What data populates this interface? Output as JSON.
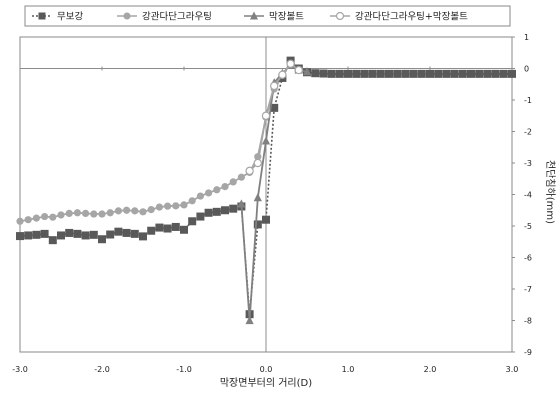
{
  "chart_data": {
    "type": "line",
    "xlabel": "막장면부터의 거리(D)",
    "ylabel": "천단침하(mm)",
    "xlim": [
      -3,
      3
    ],
    "ylim": [
      -9,
      1
    ],
    "x_ticks": [
      "-3.0",
      "-2.0",
      "-1.0",
      "0.0",
      "1.0",
      "2.0",
      "3.0"
    ],
    "y_ticks": [
      "1",
      "0",
      "-1",
      "-2",
      "-3",
      "-4",
      "-5",
      "-6",
      "-7",
      "-8",
      "-9"
    ],
    "grid": false,
    "legend_position": "top",
    "series": [
      {
        "name": "무보강",
        "color": "#595959",
        "marker": "square",
        "line": "dotted",
        "points": [
          [
            -3.0,
            -5.32
          ],
          [
            -2.9,
            -5.3
          ],
          [
            -2.8,
            -5.28
          ],
          [
            -2.7,
            -5.25
          ],
          [
            -2.6,
            -5.45
          ],
          [
            -2.5,
            -5.3
          ],
          [
            -2.4,
            -5.22
          ],
          [
            -2.3,
            -5.25
          ],
          [
            -2.2,
            -5.3
          ],
          [
            -2.1,
            -5.28
          ],
          [
            -2.0,
            -5.42
          ],
          [
            -1.9,
            -5.27
          ],
          [
            -1.8,
            -5.18
          ],
          [
            -1.7,
            -5.22
          ],
          [
            -1.6,
            -5.25
          ],
          [
            -1.5,
            -5.33
          ],
          [
            -1.4,
            -5.15
          ],
          [
            -1.3,
            -5.05
          ],
          [
            -1.2,
            -5.08
          ],
          [
            -1.1,
            -5.03
          ],
          [
            -1.0,
            -5.12
          ],
          [
            -0.9,
            -4.85
          ],
          [
            -0.8,
            -4.7
          ],
          [
            -0.7,
            -4.58
          ],
          [
            -0.6,
            -4.55
          ],
          [
            -0.5,
            -4.5
          ],
          [
            -0.4,
            -4.45
          ],
          [
            -0.3,
            -4.38
          ],
          [
            -0.2,
            -7.8
          ],
          [
            -0.1,
            -4.95
          ],
          [
            0.0,
            -4.8
          ],
          [
            0.1,
            -1.25
          ],
          [
            0.2,
            -0.3
          ],
          [
            0.3,
            0.25
          ],
          [
            0.4,
            0.0
          ],
          [
            0.5,
            -0.12
          ],
          [
            0.6,
            -0.15
          ],
          [
            0.7,
            -0.16
          ],
          [
            0.8,
            -0.17
          ],
          [
            0.9,
            -0.17
          ],
          [
            1.0,
            -0.17
          ],
          [
            1.1,
            -0.17
          ],
          [
            1.2,
            -0.17
          ],
          [
            1.3,
            -0.17
          ],
          [
            1.4,
            -0.17
          ],
          [
            1.5,
            -0.17
          ],
          [
            1.6,
            -0.17
          ],
          [
            1.7,
            -0.17
          ],
          [
            1.8,
            -0.17
          ],
          [
            1.9,
            -0.17
          ],
          [
            2.0,
            -0.17
          ],
          [
            2.1,
            -0.17
          ],
          [
            2.2,
            -0.17
          ],
          [
            2.3,
            -0.17
          ],
          [
            2.4,
            -0.17
          ],
          [
            2.5,
            -0.17
          ],
          [
            2.6,
            -0.17
          ],
          [
            2.7,
            -0.17
          ],
          [
            2.8,
            -0.17
          ],
          [
            2.9,
            -0.17
          ],
          [
            3.0,
            -0.17
          ]
        ]
      },
      {
        "name": "강관다단그라우팅",
        "color": "#a6a6a6",
        "marker": "circle",
        "line": "solid",
        "points": [
          [
            -3.0,
            -4.85
          ],
          [
            -2.9,
            -4.8
          ],
          [
            -2.8,
            -4.75
          ],
          [
            -2.7,
            -4.7
          ],
          [
            -2.6,
            -4.72
          ],
          [
            -2.5,
            -4.65
          ],
          [
            -2.4,
            -4.6
          ],
          [
            -2.3,
            -4.58
          ],
          [
            -2.2,
            -4.6
          ],
          [
            -2.1,
            -4.62
          ],
          [
            -2.0,
            -4.62
          ],
          [
            -1.9,
            -4.58
          ],
          [
            -1.8,
            -4.52
          ],
          [
            -1.7,
            -4.5
          ],
          [
            -1.6,
            -4.52
          ],
          [
            -1.5,
            -4.55
          ],
          [
            -1.4,
            -4.48
          ],
          [
            -1.3,
            -4.4
          ],
          [
            -1.2,
            -4.37
          ],
          [
            -1.1,
            -4.36
          ],
          [
            -1.0,
            -4.33
          ],
          [
            -0.9,
            -4.2
          ],
          [
            -0.8,
            -4.05
          ],
          [
            -0.7,
            -3.95
          ],
          [
            -0.6,
            -3.85
          ],
          [
            -0.5,
            -3.75
          ],
          [
            -0.4,
            -3.6
          ],
          [
            -0.3,
            -3.45
          ],
          [
            -0.2,
            -3.3
          ],
          [
            -0.1,
            -2.8
          ],
          [
            0.0,
            -1.55
          ],
          [
            0.1,
            -0.65
          ],
          [
            0.2,
            -0.25
          ],
          [
            0.3,
            0.2
          ],
          [
            0.4,
            -0.05
          ],
          [
            0.5,
            -0.12
          ],
          [
            0.6,
            -0.15
          ],
          [
            0.7,
            -0.16
          ],
          [
            0.8,
            -0.17
          ],
          [
            0.9,
            -0.17
          ],
          [
            1.0,
            -0.17
          ],
          [
            1.1,
            -0.17
          ],
          [
            1.2,
            -0.17
          ],
          [
            1.3,
            -0.17
          ],
          [
            1.4,
            -0.17
          ],
          [
            1.5,
            -0.17
          ],
          [
            1.6,
            -0.17
          ],
          [
            1.7,
            -0.17
          ],
          [
            1.8,
            -0.17
          ],
          [
            1.9,
            -0.17
          ],
          [
            2.0,
            -0.17
          ],
          [
            2.1,
            -0.17
          ],
          [
            2.2,
            -0.17
          ],
          [
            2.3,
            -0.17
          ],
          [
            2.4,
            -0.17
          ],
          [
            2.5,
            -0.17
          ],
          [
            2.6,
            -0.17
          ],
          [
            2.7,
            -0.17
          ],
          [
            2.8,
            -0.17
          ],
          [
            2.9,
            -0.17
          ],
          [
            3.0,
            -0.17
          ]
        ]
      },
      {
        "name": "막장볼트",
        "color": "#808080",
        "marker": "triangle",
        "line": "solid",
        "points": [
          [
            -0.3,
            -4.3
          ],
          [
            -0.2,
            -8.0
          ],
          [
            -0.1,
            -4.1
          ],
          [
            0.0,
            -2.3
          ],
          [
            0.1,
            -0.45
          ],
          [
            0.2,
            -0.15
          ],
          [
            0.3,
            0.1
          ],
          [
            0.4,
            -0.05
          ],
          [
            0.5,
            -0.1
          ]
        ]
      },
      {
        "name": "강관다단그라우팅+막장볼트",
        "color": "#a6a6a6",
        "marker": "circle-open",
        "line": "solid",
        "points": [
          [
            -0.2,
            -3.25
          ],
          [
            -0.1,
            -3.0
          ],
          [
            0.0,
            -1.5
          ],
          [
            0.1,
            -0.55
          ],
          [
            0.2,
            -0.2
          ],
          [
            0.3,
            0.15
          ],
          [
            0.4,
            -0.05
          ]
        ]
      }
    ]
  }
}
